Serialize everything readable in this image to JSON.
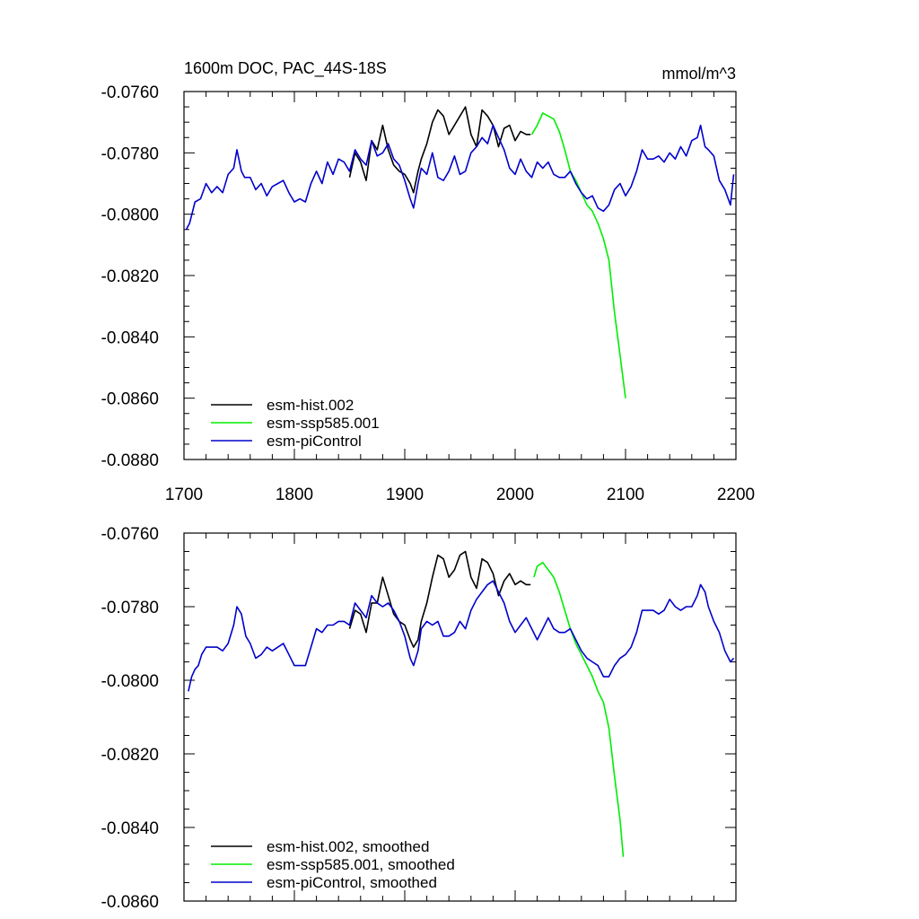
{
  "chart_data": [
    {
      "type": "line",
      "title": "1600m DOC, PAC_44S-18S",
      "units": "mmol/m^3",
      "xlim": [
        1700,
        2200
      ],
      "ylim": [
        -0.088,
        -0.076
      ],
      "x_ticks": [
        "1700",
        "1800",
        "1900",
        "2000",
        "2100",
        "2200"
      ],
      "y_ticks": [
        "-0.0760",
        "-0.0780",
        "-0.0800",
        "-0.0820",
        "-0.0840",
        "-0.0860",
        "-0.0880"
      ],
      "legend_position": "bottom-left",
      "grid": false,
      "series": [
        {
          "name": "esm-hist.002",
          "color": "#000000",
          "x": [
            1850,
            1855,
            1860,
            1865,
            1870,
            1875,
            1880,
            1885,
            1890,
            1895,
            1900,
            1905,
            1908,
            1912,
            1915,
            1920,
            1925,
            1930,
            1935,
            1940,
            1945,
            1950,
            1955,
            1960,
            1965,
            1970,
            1975,
            1980,
            1985,
            1990,
            1995,
            2000,
            2005,
            2010,
            2014
          ],
          "y": [
            -0.0788,
            -0.078,
            -0.0783,
            -0.0789,
            -0.0776,
            -0.0779,
            -0.0771,
            -0.0779,
            -0.0784,
            -0.0786,
            -0.0787,
            -0.079,
            -0.0793,
            -0.0786,
            -0.0782,
            -0.0777,
            -0.077,
            -0.0766,
            -0.0768,
            -0.0774,
            -0.0771,
            -0.0768,
            -0.0765,
            -0.0774,
            -0.0778,
            -0.0766,
            -0.0768,
            -0.0771,
            -0.0778,
            -0.0772,
            -0.0771,
            -0.0776,
            -0.0773,
            -0.0774,
            -0.0774
          ]
        },
        {
          "name": "esm-ssp585.001",
          "color": "#00ee00",
          "x": [
            2015,
            2020,
            2025,
            2030,
            2035,
            2040,
            2045,
            2050,
            2055,
            2060,
            2065,
            2070,
            2075,
            2080,
            2085,
            2090,
            2095,
            2100
          ],
          "y": [
            -0.0774,
            -0.0771,
            -0.0767,
            -0.0768,
            -0.0769,
            -0.0773,
            -0.0779,
            -0.0786,
            -0.0789,
            -0.0793,
            -0.0797,
            -0.0799,
            -0.0803,
            -0.0808,
            -0.0815,
            -0.0832,
            -0.0846,
            -0.086
          ]
        },
        {
          "name": "esm-piControl",
          "color": "#0000cc",
          "x": [
            1702,
            1705,
            1710,
            1715,
            1720,
            1725,
            1730,
            1735,
            1740,
            1745,
            1748,
            1752,
            1755,
            1760,
            1765,
            1770,
            1775,
            1780,
            1785,
            1790,
            1795,
            1800,
            1805,
            1810,
            1815,
            1820,
            1825,
            1830,
            1835,
            1840,
            1845,
            1850,
            1855,
            1860,
            1865,
            1870,
            1875,
            1880,
            1885,
            1890,
            1895,
            1900,
            1905,
            1908,
            1912,
            1915,
            1920,
            1925,
            1930,
            1935,
            1940,
            1945,
            1950,
            1955,
            1960,
            1965,
            1970,
            1975,
            1980,
            1985,
            1990,
            1995,
            2000,
            2005,
            2010,
            2015,
            2020,
            2025,
            2030,
            2035,
            2040,
            2045,
            2050,
            2055,
            2060,
            2065,
            2070,
            2075,
            2080,
            2085,
            2090,
            2095,
            2100,
            2105,
            2110,
            2115,
            2120,
            2125,
            2130,
            2135,
            2140,
            2145,
            2150,
            2155,
            2160,
            2165,
            2168,
            2172,
            2175,
            2180,
            2185,
            2190,
            2195,
            2198
          ],
          "y": [
            -0.0805,
            -0.0803,
            -0.0796,
            -0.0795,
            -0.079,
            -0.0793,
            -0.0791,
            -0.0793,
            -0.0787,
            -0.0785,
            -0.0779,
            -0.0786,
            -0.0788,
            -0.0788,
            -0.0792,
            -0.079,
            -0.0794,
            -0.0791,
            -0.079,
            -0.0789,
            -0.0793,
            -0.0796,
            -0.0795,
            -0.0796,
            -0.079,
            -0.0786,
            -0.079,
            -0.0783,
            -0.0787,
            -0.0782,
            -0.0783,
            -0.0786,
            -0.0779,
            -0.0782,
            -0.0784,
            -0.0776,
            -0.0781,
            -0.078,
            -0.0777,
            -0.0782,
            -0.0784,
            -0.0789,
            -0.0795,
            -0.0798,
            -0.079,
            -0.0785,
            -0.0787,
            -0.078,
            -0.0788,
            -0.0789,
            -0.0786,
            -0.0781,
            -0.0787,
            -0.0786,
            -0.078,
            -0.0778,
            -0.0775,
            -0.0777,
            -0.0771,
            -0.0775,
            -0.0779,
            -0.0785,
            -0.0787,
            -0.0782,
            -0.0786,
            -0.0788,
            -0.0783,
            -0.0785,
            -0.0783,
            -0.0787,
            -0.0788,
            -0.0788,
            -0.0786,
            -0.079,
            -0.0793,
            -0.0795,
            -0.0794,
            -0.0798,
            -0.0799,
            -0.0797,
            -0.0792,
            -0.079,
            -0.0794,
            -0.0791,
            -0.0786,
            -0.0779,
            -0.0782,
            -0.0782,
            -0.0781,
            -0.0783,
            -0.078,
            -0.0782,
            -0.0778,
            -0.0781,
            -0.0776,
            -0.0775,
            -0.0771,
            -0.0778,
            -0.0779,
            -0.0781,
            -0.0789,
            -0.0792,
            -0.0797,
            -0.0787
          ]
        }
      ]
    },
    {
      "type": "line",
      "xlim": [
        1700,
        2200
      ],
      "ylim": [
        -0.086,
        -0.076
      ],
      "x_ticks": [],
      "y_ticks": [
        "-0.0760",
        "-0.0780",
        "-0.0800",
        "-0.0820",
        "-0.0840",
        "-0.0860"
      ],
      "legend_position": "bottom-left",
      "grid": false,
      "series": [
        {
          "name": "esm-hist.002, smoothed",
          "color": "#000000",
          "x": [
            1850,
            1855,
            1860,
            1865,
            1870,
            1875,
            1880,
            1885,
            1890,
            1895,
            1900,
            1905,
            1908,
            1912,
            1915,
            1920,
            1925,
            1930,
            1935,
            1940,
            1945,
            1950,
            1955,
            1960,
            1965,
            1970,
            1975,
            1980,
            1985,
            1990,
            1995,
            2000,
            2005,
            2010,
            2014
          ],
          "y": [
            -0.0786,
            -0.0781,
            -0.0782,
            -0.0787,
            -0.0779,
            -0.0779,
            -0.0772,
            -0.0777,
            -0.0782,
            -0.0784,
            -0.0785,
            -0.0789,
            -0.0791,
            -0.0789,
            -0.0784,
            -0.0779,
            -0.0772,
            -0.0766,
            -0.0767,
            -0.0772,
            -0.077,
            -0.0766,
            -0.0765,
            -0.0772,
            -0.0775,
            -0.0767,
            -0.0768,
            -0.0771,
            -0.0777,
            -0.0773,
            -0.0771,
            -0.0774,
            -0.0773,
            -0.0774,
            -0.0774
          ]
        },
        {
          "name": "esm-ssp585.001, smoothed",
          "color": "#00ee00",
          "x": [
            2017,
            2020,
            2025,
            2030,
            2035,
            2040,
            2045,
            2050,
            2055,
            2060,
            2065,
            2070,
            2075,
            2080,
            2085,
            2090,
            2095,
            2098
          ],
          "y": [
            -0.0772,
            -0.0769,
            -0.0768,
            -0.077,
            -0.0772,
            -0.0776,
            -0.0781,
            -0.0786,
            -0.079,
            -0.0793,
            -0.0796,
            -0.0799,
            -0.0803,
            -0.0806,
            -0.0813,
            -0.0826,
            -0.0838,
            -0.0848
          ]
        },
        {
          "name": "esm-piControl, smoothed",
          "color": "#0000cc",
          "x": [
            1704,
            1707,
            1710,
            1713,
            1716,
            1720,
            1725,
            1730,
            1735,
            1740,
            1745,
            1748,
            1752,
            1756,
            1760,
            1765,
            1770,
            1775,
            1780,
            1785,
            1790,
            1795,
            1800,
            1805,
            1810,
            1815,
            1820,
            1825,
            1830,
            1835,
            1840,
            1845,
            1850,
            1855,
            1860,
            1865,
            1870,
            1875,
            1880,
            1885,
            1890,
            1895,
            1900,
            1905,
            1908,
            1912,
            1915,
            1920,
            1925,
            1930,
            1935,
            1940,
            1945,
            1950,
            1955,
            1960,
            1965,
            1970,
            1975,
            1980,
            1985,
            1990,
            1995,
            2000,
            2005,
            2010,
            2015,
            2020,
            2025,
            2030,
            2035,
            2040,
            2045,
            2050,
            2055,
            2060,
            2065,
            2070,
            2075,
            2080,
            2085,
            2090,
            2095,
            2100,
            2105,
            2110,
            2115,
            2120,
            2125,
            2130,
            2135,
            2140,
            2145,
            2150,
            2155,
            2160,
            2165,
            2168,
            2172,
            2175,
            2180,
            2185,
            2190,
            2195,
            2198
          ],
          "y": [
            -0.0803,
            -0.0799,
            -0.0797,
            -0.0796,
            -0.0793,
            -0.0791,
            -0.0791,
            -0.0791,
            -0.0792,
            -0.079,
            -0.0785,
            -0.078,
            -0.0782,
            -0.0788,
            -0.079,
            -0.0794,
            -0.0793,
            -0.0791,
            -0.0792,
            -0.0791,
            -0.079,
            -0.0793,
            -0.0796,
            -0.0796,
            -0.0796,
            -0.0791,
            -0.0786,
            -0.0787,
            -0.0785,
            -0.0785,
            -0.0784,
            -0.0784,
            -0.0785,
            -0.0779,
            -0.0781,
            -0.0783,
            -0.0777,
            -0.0779,
            -0.078,
            -0.0779,
            -0.0781,
            -0.0784,
            -0.0788,
            -0.0794,
            -0.0796,
            -0.0792,
            -0.0786,
            -0.0784,
            -0.0785,
            -0.0784,
            -0.0788,
            -0.0788,
            -0.0787,
            -0.0784,
            -0.0786,
            -0.0781,
            -0.0778,
            -0.0776,
            -0.0774,
            -0.0773,
            -0.0776,
            -0.0779,
            -0.0784,
            -0.0787,
            -0.0785,
            -0.0783,
            -0.0786,
            -0.0789,
            -0.0786,
            -0.0783,
            -0.0786,
            -0.0787,
            -0.0787,
            -0.0786,
            -0.0789,
            -0.0792,
            -0.0794,
            -0.0795,
            -0.0796,
            -0.0799,
            -0.0799,
            -0.0796,
            -0.0794,
            -0.0793,
            -0.0791,
            -0.0787,
            -0.0781,
            -0.0781,
            -0.0781,
            -0.0782,
            -0.0781,
            -0.0778,
            -0.078,
            -0.0781,
            -0.078,
            -0.078,
            -0.0777,
            -0.0774,
            -0.0776,
            -0.078,
            -0.0784,
            -0.0787,
            -0.0792,
            -0.0795,
            -0.0794
          ]
        }
      ]
    }
  ]
}
